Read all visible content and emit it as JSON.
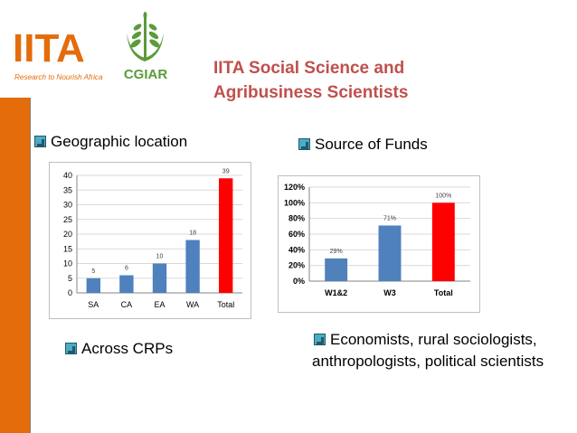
{
  "logos": {
    "iita_text": "IITA",
    "iita_tagline": "Research to Nourish Africa",
    "cgiar_text": "CGIAR"
  },
  "title": {
    "line1": "IITA Social Science and",
    "line2": "Agribusiness Scientists"
  },
  "labels": {
    "geographic": "Geographic location",
    "funds": "Source of Funds",
    "crps": "Across CRPs",
    "economists": "Economists, rural sociologists, anthropologists, political scientists"
  },
  "colors": {
    "accent": "#e46c0a",
    "title": "#c0504d",
    "bar_blue": "#4f81bd",
    "bar_red": "#ff0000",
    "bullet": "#4bacc6"
  },
  "chart_data": [
    {
      "type": "bar",
      "categories": [
        "SA",
        "CA",
        "EA",
        "WA",
        "Total"
      ],
      "values": [
        5,
        6,
        10,
        18,
        39
      ],
      "data_labels": [
        "5",
        "6",
        "10",
        "18",
        "39"
      ],
      "bar_colors": [
        "#4f81bd",
        "#4f81bd",
        "#4f81bd",
        "#4f81bd",
        "#ff0000"
      ],
      "ylim": [
        0,
        40
      ],
      "yticks": [
        0,
        5,
        10,
        15,
        20,
        25,
        30,
        35,
        40
      ],
      "ytick_labels": [
        "0",
        "5",
        "10",
        "15",
        "20",
        "25",
        "30",
        "35",
        "40"
      ],
      "grid": true,
      "title": "",
      "xlabel": "",
      "ylabel": ""
    },
    {
      "type": "bar",
      "categories": [
        "W1&2",
        "W3",
        "Total"
      ],
      "values": [
        29,
        71,
        100
      ],
      "data_labels": [
        "29%",
        "71%",
        "100%"
      ],
      "bar_colors": [
        "#4f81bd",
        "#4f81bd",
        "#ff0000"
      ],
      "ylim": [
        0,
        120
      ],
      "yticks": [
        0,
        20,
        40,
        60,
        80,
        100,
        120
      ],
      "ytick_labels": [
        "0%",
        "20%",
        "40%",
        "60%",
        "80%",
        "100%",
        "120%"
      ],
      "grid": true,
      "title": "",
      "xlabel": "",
      "ylabel": ""
    }
  ]
}
